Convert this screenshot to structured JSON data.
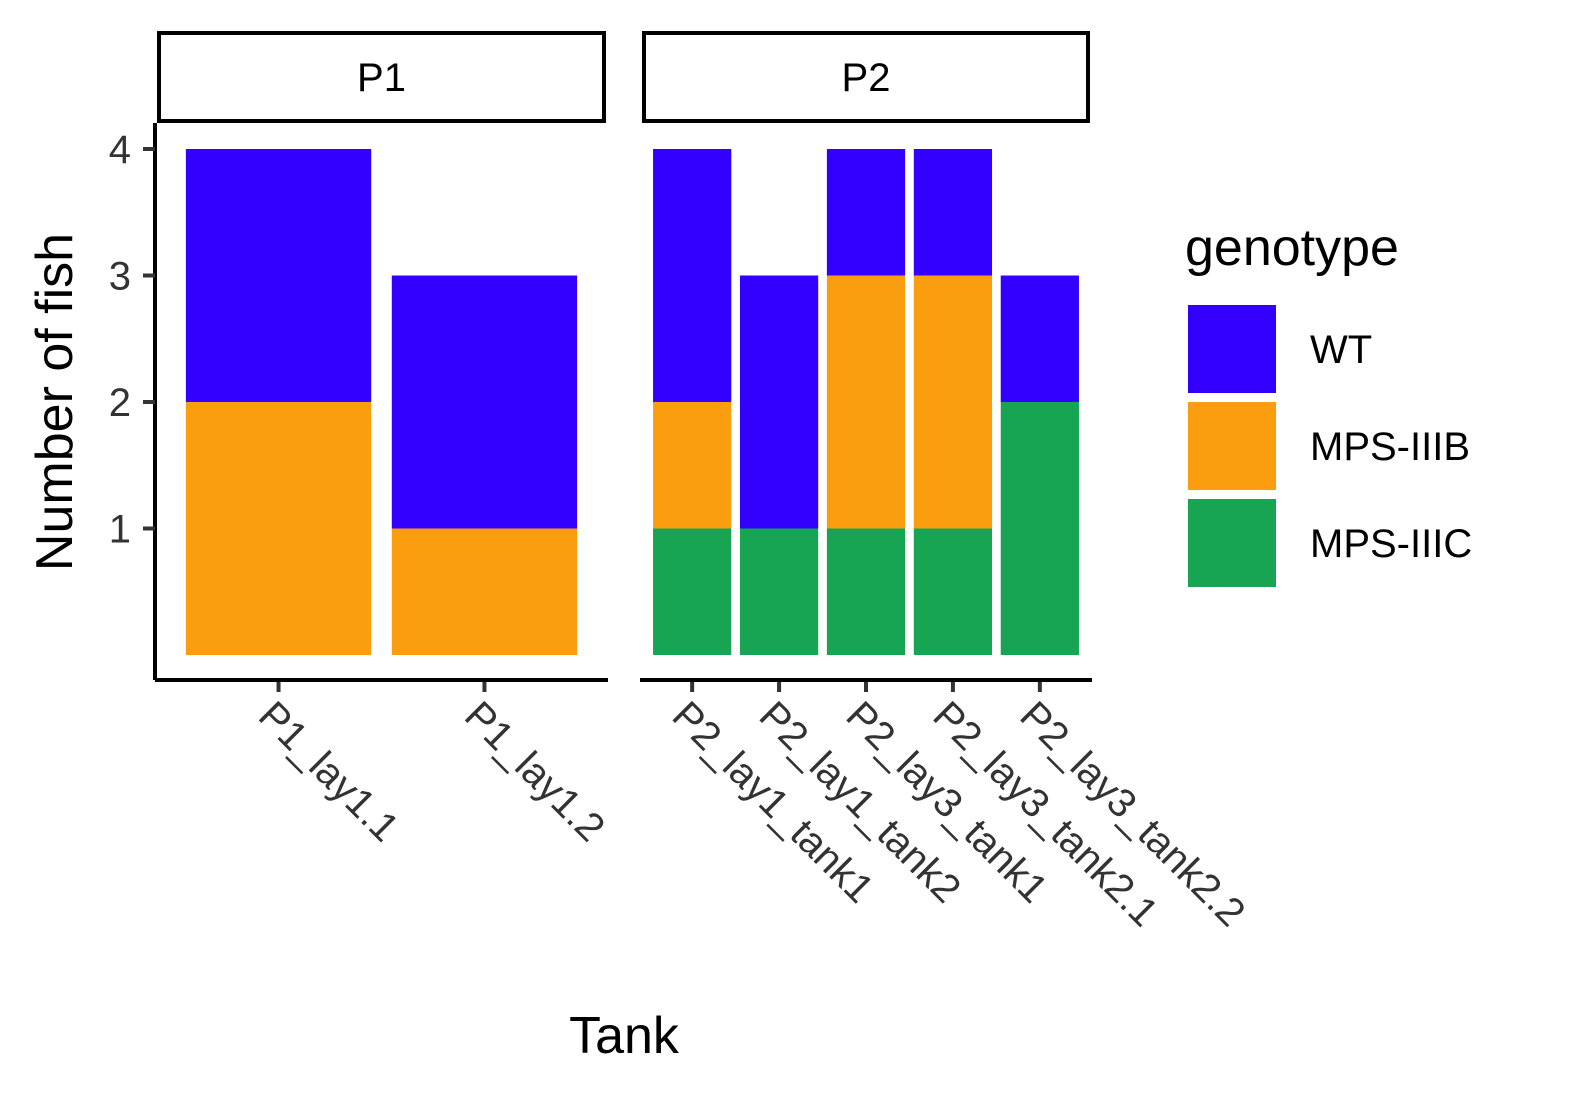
{
  "chart_data": {
    "type": "bar",
    "stacked": true,
    "xlabel": "Tank",
    "ylabel": "Number of fish",
    "ylim": [
      0,
      4
    ],
    "yticks": [
      1,
      2,
      3,
      4
    ],
    "grid": false,
    "legend": {
      "title": "genotype",
      "placement": "right",
      "entries": [
        "WT",
        "MPS-IIIB",
        "MPS-IIIC"
      ]
    },
    "colors": {
      "WT": "#3300ff",
      "MPS-IIIB": "#fa9e0f",
      "MPS-IIIC": "#17a553"
    },
    "stack_order_bottom_to_top": [
      "MPS-IIIC",
      "MPS-IIIB",
      "WT"
    ],
    "facets": [
      {
        "label": "P1",
        "categories": [
          "P1_lay1.1",
          "P1_lay1.2"
        ],
        "series": [
          {
            "name": "WT",
            "values": [
              2,
              2
            ]
          },
          {
            "name": "MPS-IIIB",
            "values": [
              2,
              1
            ]
          },
          {
            "name": "MPS-IIIC",
            "values": [
              0,
              0
            ]
          }
        ]
      },
      {
        "label": "P2",
        "categories": [
          "P2_lay1_tank1",
          "P2_lay1_tank2",
          "P2_lay3_tank1",
          "P2_lay3_tank2.1",
          "P2_lay3_tank2.2"
        ],
        "series": [
          {
            "name": "WT",
            "values": [
              2,
              2,
              1,
              1,
              1
            ]
          },
          {
            "name": "MPS-IIIB",
            "values": [
              1,
              0,
              2,
              2,
              0
            ]
          },
          {
            "name": "MPS-IIIC",
            "values": [
              1,
              1,
              1,
              1,
              2
            ]
          }
        ]
      }
    ]
  }
}
